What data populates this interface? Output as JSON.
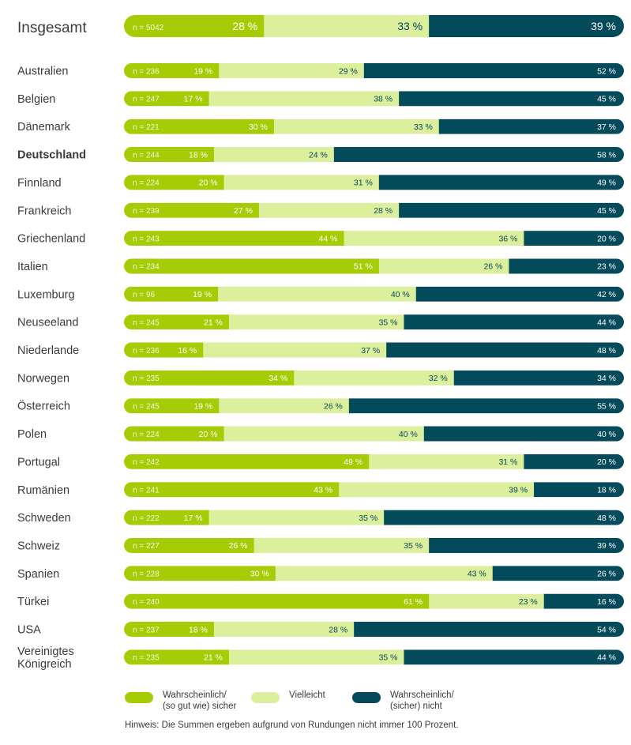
{
  "chart_data": {
    "type": "bar",
    "orientation": "horizontal",
    "stacked": true,
    "normalized": true,
    "legend_position": "bottom",
    "grid": false,
    "colors": {
      "sicher": "#a6cc06",
      "vielleicht": "#dcef9d",
      "nicht": "#034a5a"
    },
    "total": {
      "label": "Insgesamt",
      "n": "n = 5042",
      "values": [
        28,
        33,
        39
      ]
    },
    "categories": [
      "Australien",
      "Belgien",
      "Dänemark",
      "Deutschland",
      "Finnland",
      "Frankreich",
      "Griechenland",
      "Italien",
      "Luxemburg",
      "Neuseeland",
      "Niederlande",
      "Norwegen",
      "Österreich",
      "Polen",
      "Portugal",
      "Rumänien",
      "Schweden",
      "Schweiz",
      "Spanien",
      "Türkei",
      "USA",
      "Vereinigtes\nKönigreich"
    ],
    "highlighted_category": "Deutschland",
    "n": [
      "n = 236",
      "n = 247",
      "n = 221",
      "n = 244",
      "n = 224",
      "n = 239",
      "n = 243",
      "n = 234",
      "n = 96",
      "n = 245",
      "n = 236",
      "n = 235",
      "n = 245",
      "n = 224",
      "n = 242",
      "n = 241",
      "n = 222",
      "n = 227",
      "n = 228",
      "n = 240",
      "n = 237",
      "n = 235"
    ],
    "series": [
      {
        "name": "Wahrscheinlich/\n(so gut wie) sicher",
        "values": [
          19,
          17,
          30,
          18,
          20,
          27,
          44,
          51,
          19,
          21,
          16,
          34,
          19,
          20,
          49,
          43,
          17,
          26,
          30,
          61,
          18,
          21
        ]
      },
      {
        "name": "Vielleicht",
        "values": [
          29,
          38,
          33,
          24,
          31,
          28,
          36,
          26,
          40,
          35,
          37,
          32,
          26,
          40,
          31,
          39,
          35,
          35,
          43,
          23,
          28,
          35
        ]
      },
      {
        "name": "Wahrscheinlich/\n(sicher) nicht",
        "values": [
          52,
          45,
          37,
          58,
          49,
          45,
          20,
          23,
          42,
          44,
          48,
          34,
          55,
          40,
          20,
          18,
          48,
          39,
          26,
          16,
          54,
          44
        ]
      }
    ],
    "note": "Hinweis: Die Summen ergeben aufgrund von Rundungen nicht immer 100 Prozent."
  }
}
